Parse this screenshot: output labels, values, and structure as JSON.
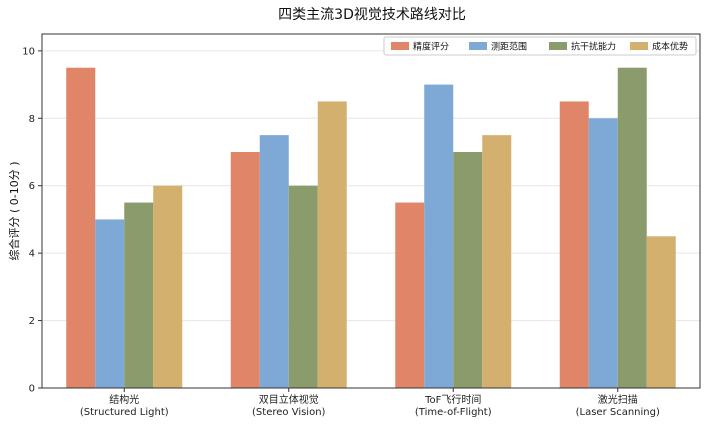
{
  "chart_data": {
    "type": "bar",
    "title": "四类主流3D视觉技术路线对比",
    "xlabel": "",
    "ylabel": "综合评分 ( 0-10分 )",
    "ylim": [
      0,
      10.5
    ],
    "yticks": [
      0,
      2,
      4,
      6,
      8,
      10
    ],
    "grid": "y",
    "legend_position": "top-right",
    "categories": [
      [
        "结构光",
        "(Structured Light)"
      ],
      [
        "双目立体视觉",
        "(Stereo Vision)"
      ],
      [
        "ToF飞行时间",
        "(Time-of-Flight)"
      ],
      [
        "激光扫描",
        "(Laser Scanning)"
      ]
    ],
    "series": [
      {
        "name": "精度评分",
        "color": "#e08567",
        "values": [
          9.5,
          7.0,
          5.5,
          8.5
        ]
      },
      {
        "name": "测距范围",
        "color": "#7ea8d6",
        "values": [
          5.0,
          7.5,
          9.0,
          8.0
        ]
      },
      {
        "name": "抗干扰能力",
        "color": "#8a9b6c",
        "values": [
          5.5,
          6.0,
          7.0,
          9.5
        ]
      },
      {
        "name": "成本优势",
        "color": "#d4b06f",
        "values": [
          6.0,
          8.5,
          7.5,
          4.5
        ]
      }
    ]
  }
}
